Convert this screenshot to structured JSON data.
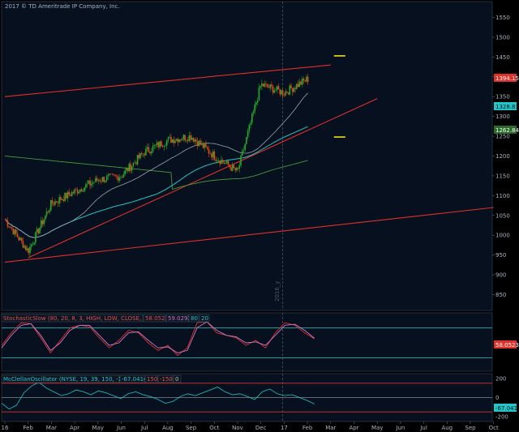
{
  "copyright": "2017 © TD Ameritrade IP Company, Inc.",
  "colors": {
    "background": "#06101f",
    "panel_border": "#2a3a4a",
    "grid": "#1d2a3a",
    "axis_text": "#a9b3bd",
    "candle_up": "#2aa82a",
    "candle_down": "#e04a1a",
    "ma_fast": "#9aa3ad",
    "ma_mid": "#23c6c6",
    "ma_slow": "#4a9a3a",
    "trendline": "#e0302a",
    "marker": "#f2e21a",
    "stoch_k": "#e0302a",
    "stoch_d": "#c87ac8",
    "stoch_band": "#23c6c6",
    "mcclellan": "#23c6c6",
    "mcc_band_upper": "#e0302a",
    "mcc_band_lower": "#e0302a"
  },
  "chart_data": [
    {
      "type": "candlestick",
      "title": "",
      "x_tick_labels": [
        "16",
        "Feb",
        "Mar",
        "Apr",
        "May",
        "Jun",
        "Jul",
        "Aug",
        "Sep",
        "Oct",
        "Nov",
        "Dec",
        "17",
        "Feb",
        "Mar",
        "Apr",
        "May",
        "Jun",
        "Jul",
        "Aug",
        "Sep",
        "Oct"
      ],
      "y_tick_labels": [
        "1550",
        "1500",
        "1450",
        "1400",
        "1350",
        "1300",
        "1250",
        "1200",
        "1150",
        "1100",
        "1050",
        "1000",
        "950",
        "900",
        "850"
      ],
      "ylim": [
        810,
        1590
      ],
      "year_marker_label": "2016_y",
      "price_path_monthly_closes": {
        "x": [
          "2016-01",
          "2016-02",
          "2016-03",
          "2016-04",
          "2016-05",
          "2016-06",
          "2016-07",
          "2016-08",
          "2016-09",
          "2016-10",
          "2016-11",
          "2016-12",
          "2017-01",
          "2017-02"
        ],
        "y": [
          1040,
          960,
          1080,
          1110,
          1140,
          1150,
          1210,
          1240,
          1250,
          1200,
          1160,
          1380,
          1360,
          1394.15
        ]
      },
      "last_price_label": "1394.15",
      "ma_labels": [
        "1328.81",
        "1262.84"
      ],
      "trendlines": [
        {
          "name": "upper",
          "from": [
            "2016-01",
            1350
          ],
          "to": [
            "2017-03",
            1430
          ]
        },
        {
          "name": "mid",
          "from": [
            "2016-02",
            943
          ],
          "to": [
            "2017-05",
            1345
          ]
        },
        {
          "name": "lower",
          "from": [
            "2016-01",
            932
          ],
          "to": [
            "2017-10",
            1070
          ]
        }
      ],
      "markers": [
        {
          "x": "2017-03",
          "y": 1453
        },
        {
          "x": "2017-03",
          "y": 1248
        }
      ]
    },
    {
      "type": "line",
      "title": "StochasticSlow (80, 20, 8, 3, HIGH, LOW, CLOSE, SIMPLE)",
      "legend_values": [
        "58.0523",
        "59.0292",
        "80",
        "20"
      ],
      "y_tick_labels": [
        "58.0523",
        "50"
      ],
      "bands": [
        80,
        20
      ],
      "series": [
        {
          "values": [
            45,
            70,
            90,
            88,
            60,
            30,
            55,
            80,
            85,
            82,
            60,
            40,
            55,
            75,
            70,
            50,
            35,
            45,
            25,
            40,
            90,
            92,
            70,
            65,
            60,
            45,
            55,
            40,
            70,
            90,
            85,
            70,
            58
          ]
        },
        {
          "values": [
            40,
            65,
            85,
            88,
            65,
            35,
            50,
            75,
            85,
            85,
            65,
            45,
            50,
            70,
            72,
            55,
            40,
            42,
            30,
            35,
            80,
            92,
            75,
            65,
            62,
            50,
            52,
            45,
            65,
            85,
            87,
            75,
            59
          ]
        }
      ]
    },
    {
      "type": "line",
      "title": "McClellanOscillator (NYSE, 19, 39, 150, -150, no)",
      "legend_values": [
        "-67.0414",
        "150",
        "-150",
        "0"
      ],
      "y_tick_labels": [
        "200",
        "0",
        "-200"
      ],
      "last_value_label": "-67.041",
      "bands": [
        150,
        -150
      ],
      "series": [
        {
          "values": [
            -60,
            -120,
            -80,
            50,
            120,
            160,
            100,
            60,
            20,
            40,
            80,
            60,
            30,
            70,
            50,
            20,
            -10,
            40,
            60,
            30,
            10,
            -20,
            -60,
            -40,
            10,
            40,
            20,
            50,
            80,
            110,
            60,
            30,
            40,
            10,
            -20,
            60,
            90,
            40,
            20,
            30,
            0,
            -30,
            -67
          ]
        }
      ]
    }
  ]
}
